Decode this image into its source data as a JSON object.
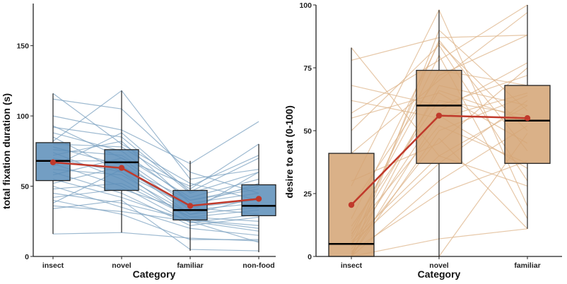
{
  "chart_data": [
    {
      "type": "boxplot",
      "xlabel": "Category",
      "ylabel": "total fixation duration (s)",
      "categories": [
        "insect",
        "novel",
        "familiar",
        "non-food"
      ],
      "ylim": [
        0,
        180
      ],
      "yticks": [
        0,
        50,
        100,
        150
      ],
      "grid": false,
      "colors": {
        "box": "#5b8db8",
        "lines": "#7ea3c2",
        "mean": "#c0392b"
      },
      "boxes": [
        {
          "min": 16,
          "q1": 54,
          "median": 68,
          "q3": 81,
          "max": 116,
          "mean": 67
        },
        {
          "min": 17,
          "q1": 47,
          "median": 67,
          "q3": 76,
          "max": 118,
          "mean": 63
        },
        {
          "min": 4,
          "q1": 26,
          "median": 33,
          "q3": 47,
          "max": 68,
          "mean": 36
        },
        {
          "min": 3,
          "q1": 29,
          "median": 36,
          "q3": 51,
          "max": 80,
          "mean": 41
        }
      ],
      "participants": [
        [
          116,
          80,
          52,
          40
        ],
        [
          112,
          105,
          60,
          45
        ],
        [
          100,
          90,
          66,
          96
        ],
        [
          93,
          70,
          50,
          72
        ],
        [
          92,
          85,
          45,
          60
        ],
        [
          88,
          75,
          40,
          50
        ],
        [
          85,
          60,
          35,
          30
        ],
        [
          82,
          118,
          55,
          62
        ],
        [
          80,
          78,
          48,
          80
        ],
        [
          78,
          65,
          30,
          35
        ],
        [
          76,
          72,
          42,
          55
        ],
        [
          74,
          55,
          28,
          25
        ],
        [
          72,
          82,
          38,
          45
        ],
        [
          70,
          60,
          26,
          20
        ],
        [
          68,
          68,
          33,
          38
        ],
        [
          66,
          50,
          24,
          30
        ],
        [
          64,
          88,
          46,
          70
        ],
        [
          62,
          58,
          30,
          42
        ],
        [
          60,
          45,
          22,
          28
        ],
        [
          58,
          70,
          36,
          52
        ],
        [
          55,
          42,
          25,
          18
        ],
        [
          52,
          64,
          40,
          48
        ],
        [
          50,
          35,
          20,
          15
        ],
        [
          48,
          52,
          28,
          33
        ],
        [
          45,
          38,
          26,
          22
        ],
        [
          42,
          48,
          32,
          60
        ],
        [
          40,
          30,
          12,
          12
        ],
        [
          38,
          62,
          35,
          40
        ],
        [
          36,
          32,
          25,
          10
        ],
        [
          34,
          40,
          5,
          4
        ],
        [
          16,
          17,
          13,
          11
        ]
      ]
    },
    {
      "type": "boxplot",
      "xlabel": "Category",
      "ylabel": "desire to eat (0-100)",
      "categories": [
        "insect",
        "novel",
        "familiar"
      ],
      "ylim": [
        0,
        100
      ],
      "yticks": [
        0,
        25,
        50,
        75,
        100
      ],
      "grid": false,
      "colors": {
        "box": "#d4a373",
        "lines": "#ddb48a",
        "mean": "#c0392b"
      },
      "boxes": [
        {
          "min": 0,
          "q1": 0,
          "median": 5,
          "q3": 41,
          "max": 83,
          "mean": 20.5
        },
        {
          "min": 0,
          "q1": 37,
          "median": 60,
          "q3": 74,
          "max": 98,
          "mean": 56
        },
        {
          "min": 11,
          "q1": 37,
          "median": 54,
          "q3": 68,
          "max": 100,
          "mean": 55
        }
      ],
      "participants": [
        [
          83,
          40,
          60
        ],
        [
          78,
          87,
          88
        ],
        [
          68,
          60,
          72
        ],
        [
          62,
          55,
          65
        ],
        [
          57,
          78,
          100
        ],
        [
          55,
          65,
          45
        ],
        [
          50,
          84,
          30
        ],
        [
          41,
          70,
          97
        ],
        [
          30,
          45,
          75
        ],
        [
          28,
          98,
          20
        ],
        [
          20,
          72,
          88
        ],
        [
          15,
          85,
          50
        ],
        [
          12,
          62,
          56
        ],
        [
          10,
          74,
          68
        ],
        [
          9,
          52,
          37
        ],
        [
          8,
          80,
          15
        ],
        [
          7,
          66,
          54
        ],
        [
          6,
          40,
          28
        ],
        [
          5,
          58,
          77
        ],
        [
          5,
          37,
          62
        ],
        [
          4,
          86,
          42
        ],
        [
          3,
          47,
          11
        ],
        [
          2,
          25,
          38
        ],
        [
          1,
          68,
          60
        ],
        [
          0,
          56,
          35
        ],
        [
          0,
          7,
          11
        ],
        [
          0,
          30,
          52
        ],
        [
          0,
          0,
          49
        ],
        [
          0,
          90,
          58
        ],
        [
          0,
          50,
          64
        ]
      ]
    }
  ]
}
